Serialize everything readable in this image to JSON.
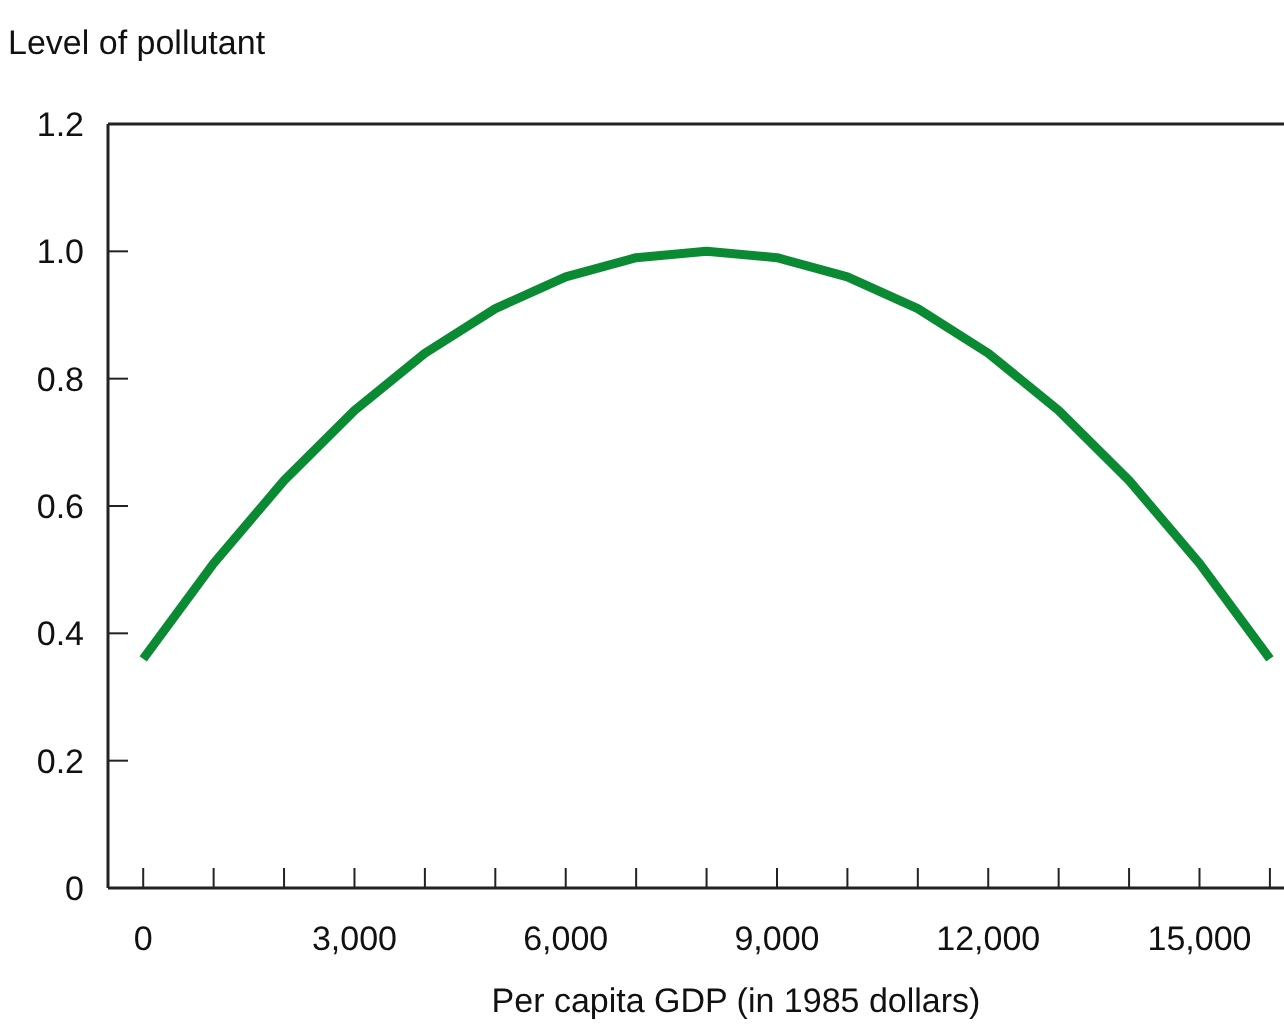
{
  "chart_data": {
    "type": "line",
    "ylabel": "Level of pollutant",
    "xlabel": "Per capita GDP (in 1985 dollars)",
    "x": [
      0,
      1000,
      2000,
      3000,
      4000,
      5000,
      6000,
      7000,
      8000,
      9000,
      10000,
      11000,
      12000,
      13000,
      14000,
      15000,
      16000
    ],
    "series": [
      {
        "color": "#0a8a32",
        "values": [
          0.36,
          0.51,
          0.64,
          0.75,
          0.84,
          0.91,
          0.96,
          0.99,
          1.0,
          0.99,
          0.96,
          0.91,
          0.84,
          0.75,
          0.64,
          0.51,
          0.36
        ]
      }
    ],
    "xlim": [
      -500,
      16200
    ],
    "ylim": [
      0,
      1.2
    ],
    "xticks": [
      {
        "value": 0,
        "label": "0"
      },
      {
        "value": 1000,
        "label": null
      },
      {
        "value": 2000,
        "label": null
      },
      {
        "value": 3000,
        "label": "3,000"
      },
      {
        "value": 4000,
        "label": null
      },
      {
        "value": 5000,
        "label": null
      },
      {
        "value": 6000,
        "label": "6,000"
      },
      {
        "value": 7000,
        "label": null
      },
      {
        "value": 8000,
        "label": null
      },
      {
        "value": 9000,
        "label": "9,000"
      },
      {
        "value": 10000,
        "label": null
      },
      {
        "value": 11000,
        "label": null
      },
      {
        "value": 12000,
        "label": "12,000"
      },
      {
        "value": 13000,
        "label": null
      },
      {
        "value": 14000,
        "label": null
      },
      {
        "value": 15000,
        "label": "15,000"
      },
      {
        "value": 16000,
        "label": null
      }
    ],
    "yticks": [
      {
        "value": 0,
        "label": "0"
      },
      {
        "value": 0.2,
        "label": "0.2"
      },
      {
        "value": 0.4,
        "label": "0.4"
      },
      {
        "value": 0.6,
        "label": "0.6"
      },
      {
        "value": 0.8,
        "label": "0.8"
      },
      {
        "value": 1,
        "label": "1.0"
      },
      {
        "value": 1.2,
        "label": "1.2"
      }
    ],
    "grid": false,
    "marker": "none",
    "line_style": "solid"
  }
}
